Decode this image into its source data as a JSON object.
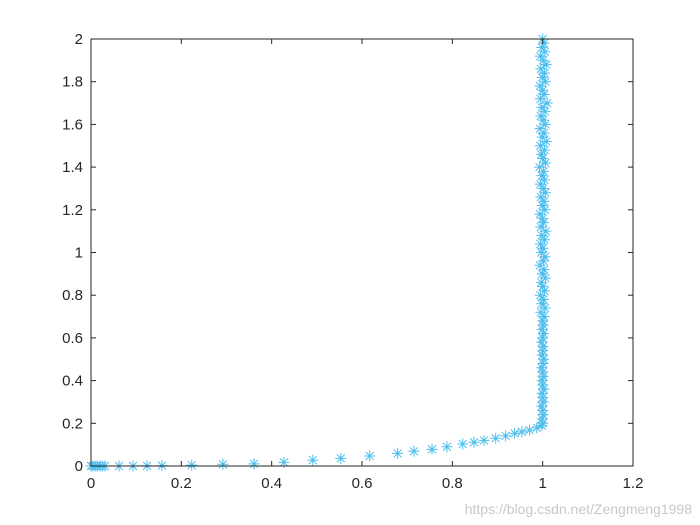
{
  "chart_data": {
    "type": "scatter",
    "title": "",
    "xlabel": "",
    "ylabel": "",
    "xlim": [
      0,
      1.2
    ],
    "ylim": [
      0,
      2
    ],
    "xticks": [
      "0",
      "0.2",
      "0.4",
      "0.6",
      "0.8",
      "1",
      "1.2"
    ],
    "yticks": [
      "0",
      "0.2",
      "0.4",
      "0.6",
      "0.8",
      "1",
      "1.2",
      "1.4",
      "1.6",
      "1.8",
      "2"
    ],
    "grid": false,
    "box": true,
    "marker": "asterisk",
    "color": "#4DBEEE",
    "series": [
      {
        "x": [
          0,
          0.004,
          0.009,
          0.014,
          0.02,
          0.025,
          0.031,
          0.062,
          0.093,
          0.124,
          0.157,
          0.223,
          0.292,
          0.361,
          0.427,
          0.491,
          0.553,
          0.617,
          0.679,
          0.715,
          0.755,
          0.788,
          0.823,
          0.848,
          0.87,
          0.896,
          0.918,
          0.938,
          0.954,
          0.971,
          0.987,
          0.998,
          1.0,
          0.999,
          1.001,
          1.0,
          0.998,
          1.001,
          1.0,
          0.999,
          1.002,
          1.0,
          0.999,
          1.001,
          1.0,
          0.998,
          1.001,
          1.002,
          0.999,
          1.0,
          1.001,
          0.998,
          1.0,
          1.002,
          0.999,
          1.001,
          1.0,
          1.003,
          0.996,
          1.005,
          0.998,
          1.002,
          0.995,
          1.004,
          1.0,
          0.997,
          1.006,
          0.999,
          1.003,
          0.994,
          1.002,
          1.005,
          0.997,
          1.001,
          0.995,
          1.004,
          0.998,
          1.007,
          0.996,
          1.002,
          1.0,
          0.994,
          1.005,
          0.999,
          1.003,
          0.996,
          1.006,
          1.001,
          0.995,
          1.004,
          0.998,
          1.002,
          0.993,
          1.006,
          1.0,
          0.997,
          1.004,
          0.995,
          1.008,
          0.999,
          1.003,
          0.994,
          1.006,
          1.001,
          0.996,
          1.005,
          0.998,
          1.01,
          0.995,
          1.003,
          1.0,
          0.994,
          1.006,
          0.999,
          1.004,
          0.996,
          1.008,
          1.001,
          0.995,
          1.005,
          0.998,
          1.003,
          1.0
        ],
        "y": [
          0,
          0,
          0,
          0,
          0,
          0,
          0,
          0,
          0,
          0.001,
          0.002,
          0.004,
          0.008,
          0.01,
          0.017,
          0.027,
          0.036,
          0.047,
          0.059,
          0.069,
          0.078,
          0.09,
          0.103,
          0.111,
          0.12,
          0.13,
          0.141,
          0.153,
          0.16,
          0.168,
          0.179,
          0.19,
          0.2,
          0.22,
          0.24,
          0.26,
          0.28,
          0.3,
          0.32,
          0.34,
          0.36,
          0.38,
          0.4,
          0.42,
          0.44,
          0.46,
          0.48,
          0.5,
          0.52,
          0.54,
          0.56,
          0.58,
          0.6,
          0.62,
          0.64,
          0.66,
          0.68,
          0.7,
          0.72,
          0.74,
          0.76,
          0.78,
          0.8,
          0.82,
          0.84,
          0.86,
          0.88,
          0.9,
          0.92,
          0.94,
          0.96,
          0.98,
          1.0,
          1.02,
          1.04,
          1.06,
          1.08,
          1.1,
          1.12,
          1.14,
          1.16,
          1.18,
          1.2,
          1.22,
          1.24,
          1.26,
          1.28,
          1.3,
          1.32,
          1.34,
          1.36,
          1.38,
          1.4,
          1.42,
          1.44,
          1.46,
          1.48,
          1.5,
          1.52,
          1.54,
          1.56,
          1.58,
          1.6,
          1.62,
          1.64,
          1.66,
          1.68,
          1.7,
          1.72,
          1.74,
          1.76,
          1.78,
          1.8,
          1.82,
          1.84,
          1.86,
          1.88,
          1.9,
          1.92,
          1.94,
          1.96,
          1.98,
          2.0
        ]
      }
    ]
  },
  "watermark": "https://blog.csdn.net/Zengmeng1998"
}
